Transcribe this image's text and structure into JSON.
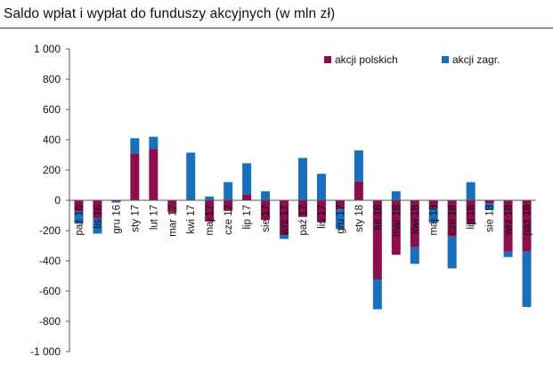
{
  "chart_data": {
    "type": "bar",
    "stacked": true,
    "title": "Saldo wpłat i wypłat do funduszy akcyjnych (w mln zł)",
    "categories": [
      "paź 16",
      "lis 16",
      "gru 16",
      "sty 17",
      "lut 17",
      "mar 17",
      "kwi 17",
      "maj 17",
      "cze 17",
      "lip 17",
      "sie 17",
      "wrz 17",
      "paź 17",
      "lis 17",
      "gru 17",
      "sty 18",
      "lut 18",
      "mar 18",
      "kwi 18",
      "maj 18",
      "cze 18",
      "lip 18",
      "sie 18",
      "wrz 18",
      "paź 18"
    ],
    "series": [
      {
        "name": "akcji polskich",
        "color": "#8b0f4f",
        "values": [
          -75,
          -120,
          -10,
          310,
          340,
          -80,
          0,
          -140,
          -70,
          40,
          -130,
          -230,
          -110,
          -145,
          -60,
          125,
          -525,
          -360,
          -310,
          -50,
          -240,
          -160,
          -20,
          -340,
          -340
        ]
      },
      {
        "name": "akcji zagr.",
        "color": "#1a6fbd",
        "values": [
          -80,
          -100,
          -5,
          100,
          80,
          0,
          315,
          25,
          120,
          205,
          60,
          -25,
          280,
          175,
          -130,
          205,
          -195,
          60,
          -110,
          -100,
          -210,
          120,
          -45,
          -35,
          -365
        ]
      }
    ],
    "y_ticks": [
      "1 000",
      "800",
      "600",
      "400",
      "200",
      "0",
      "-200",
      "-400",
      "-600",
      "-800",
      "-1 000"
    ],
    "ylim": [
      -1000,
      1000
    ],
    "legend_position": "top-right",
    "grid": false
  }
}
